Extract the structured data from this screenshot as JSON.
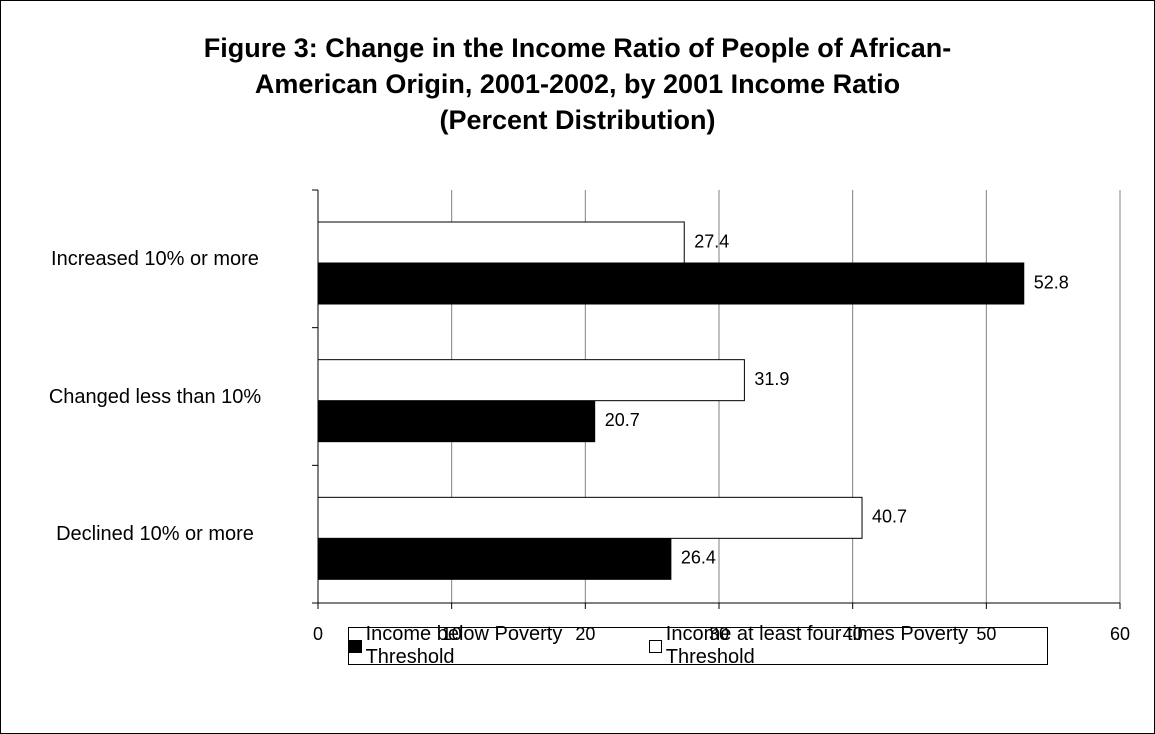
{
  "chart_data": {
    "type": "hbar",
    "title": "Figure 3: Change in the Income Ratio of People of African-American Origin, 2001-2002, by 2001 Income Ratio",
    "subtitle": "(Percent Distribution)",
    "categories": [
      "Increased 10% or more",
      "Changed less than 10%",
      "Declined 10% or more"
    ],
    "series": [
      {
        "name": "Income below Poverty Threshold",
        "color": "#000000",
        "values": [
          52.8,
          20.7,
          26.4
        ]
      },
      {
        "name": "Income at least four times Poverty Threshold",
        "color": "#ffffff",
        "values": [
          27.4,
          31.9,
          40.7
        ]
      }
    ],
    "xlim": [
      0,
      60
    ],
    "xticks": [
      0,
      10,
      20,
      30,
      40,
      50,
      60
    ],
    "grid": true,
    "legend": "bottom"
  }
}
